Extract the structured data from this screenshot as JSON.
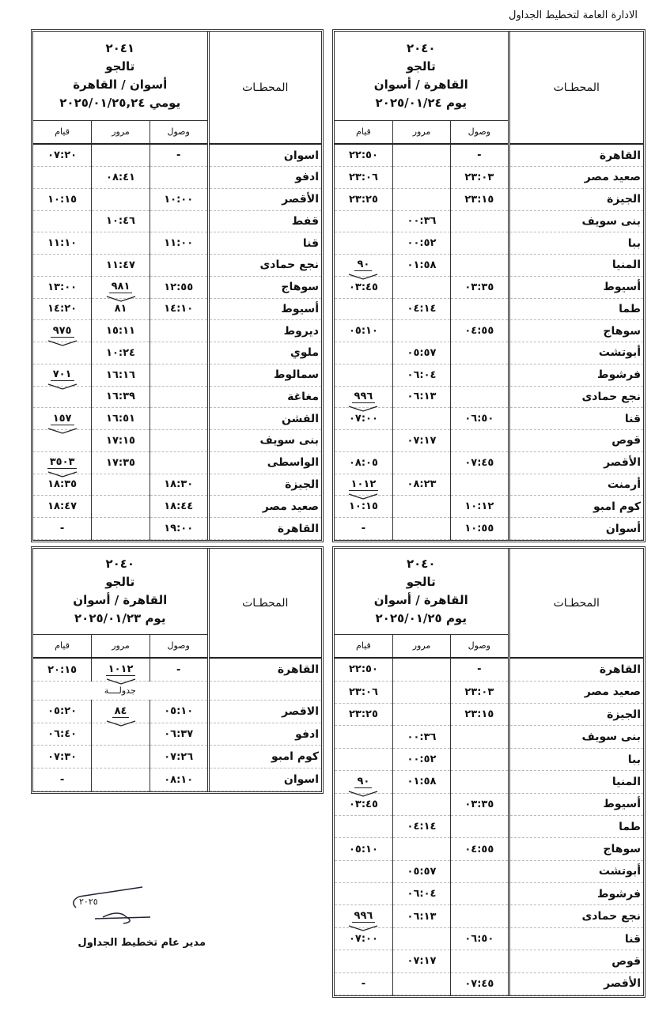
{
  "org_title": "الادارة العامة لتخطيط الجداول",
  "headers": {
    "stations": "المحطـات",
    "arrival": "وصول",
    "pass": "مرور",
    "depart": "قيام"
  },
  "timetables": [
    {
      "id": "top-right",
      "train": "٢٠٤٠",
      "type": "تالجو",
      "route": "القاهرة / أسوان",
      "date": "يوم ٢٠٢٥/٠١/٢٤",
      "rows": [
        {
          "station": "القاهرة",
          "arr": "-",
          "pass": "",
          "dep": "٢٢:٥٠"
        },
        {
          "station": "صعيد مصر",
          "arr": "٢٣:٠٣",
          "pass": "",
          "dep": "٢٣:٠٦"
        },
        {
          "station": "الجيزة",
          "arr": "٢٣:١٥",
          "pass": "",
          "dep": "٢٣:٢٥"
        },
        {
          "station": "بنى سويف",
          "arr": "",
          "pass": "٠٠:٣٦",
          "dep": ""
        },
        {
          "station": "ببا",
          "arr": "",
          "pass": "٠٠:٥٢",
          "dep": ""
        },
        {
          "station": "المنيا",
          "arr": "",
          "pass": "٠١:٥٨",
          "dep": "٩٠",
          "dep_note": true
        },
        {
          "station": "أسيوط",
          "arr": "٠٣:٣٥",
          "pass": "",
          "dep": "٠٣:٤٥"
        },
        {
          "station": "طما",
          "arr": "",
          "pass": "٠٤:١٤",
          "dep": ""
        },
        {
          "station": "سوهاج",
          "arr": "٠٤:٥٥",
          "pass": "",
          "dep": "٠٥:١٠"
        },
        {
          "station": "أبوتشت",
          "arr": "",
          "pass": "٠٥:٥٧",
          "dep": ""
        },
        {
          "station": "فرشوط",
          "arr": "",
          "pass": "٠٦:٠٤",
          "dep": ""
        },
        {
          "station": "نجع حمادى",
          "arr": "",
          "pass": "٠٦:١٣",
          "dep": "٩٩٦",
          "dep_note": true
        },
        {
          "station": "قنا",
          "arr": "٠٦:٥٠",
          "pass": "",
          "dep": "٠٧:٠٠"
        },
        {
          "station": "قوص",
          "arr": "",
          "pass": "٠٧:١٧",
          "dep": ""
        },
        {
          "station": "الأقصر",
          "arr": "٠٧:٤٥",
          "pass": "",
          "dep": "٠٨:٠٥"
        },
        {
          "station": "أرمنت",
          "arr": "",
          "pass": "٠٨:٢٣",
          "dep": "١٠١٢",
          "dep_note": true
        },
        {
          "station": "كوم امبو",
          "arr": "١٠:١٢",
          "pass": "",
          "dep": "١٠:١٥"
        },
        {
          "station": "أسوان",
          "arr": "١٠:٥٥",
          "pass": "",
          "dep": "-"
        }
      ]
    },
    {
      "id": "top-left",
      "train": "٢٠٤١",
      "type": "تالجو",
      "route": "أسوان / القاهرة",
      "date": "يومي ٢٠٢٥/٠١/٢٥,٢٤",
      "rows": [
        {
          "station": "اسوان",
          "arr": "-",
          "pass": "",
          "dep": "٠٧:٢٠"
        },
        {
          "station": "ادفو",
          "arr": "",
          "pass": "٠٨:٤١",
          "dep": ""
        },
        {
          "station": "الأقصر",
          "arr": "١٠:٠٠",
          "pass": "",
          "dep": "١٠:١٥"
        },
        {
          "station": "قفط",
          "arr": "",
          "pass": "١٠:٤٦",
          "dep": ""
        },
        {
          "station": "قنا",
          "arr": "١١:٠٠",
          "pass": "",
          "dep": "١١:١٠"
        },
        {
          "station": "نجع حمادى",
          "arr": "",
          "pass": "١١:٤٧",
          "dep": ""
        },
        {
          "station": "سوهاج",
          "arr": "١٢:٥٥",
          "pass": "٩٨١",
          "pass_note": true,
          "dep": "١٣:٠٠"
        },
        {
          "station": "أسيوط",
          "arr": "١٤:١٠",
          "pass": "٨١",
          "dep": "١٤:٢٠"
        },
        {
          "station": "ديروط",
          "arr": "",
          "pass": "١٥:١١",
          "dep": "٩٧٥",
          "dep_note": true
        },
        {
          "station": "ملوي",
          "arr": "",
          "pass": "١٠:٢٤",
          "dep": ""
        },
        {
          "station": "سمالوط",
          "arr": "",
          "pass": "١٦:١٦",
          "dep": "٧٠١",
          "dep_note": true
        },
        {
          "station": "مغاغة",
          "arr": "",
          "pass": "١٦:٣٩",
          "dep": ""
        },
        {
          "station": "الفشن",
          "arr": "",
          "pass": "١٦:٥١",
          "dep": "١٥٧",
          "dep_note": true
        },
        {
          "station": "بنى سويف",
          "arr": "",
          "pass": "١٧:١٥",
          "dep": ""
        },
        {
          "station": "الواسطى",
          "arr": "",
          "pass": "١٧:٣٥",
          "dep": "٣٥٠٣",
          "dep_note": true
        },
        {
          "station": "الجيزة",
          "arr": "١٨:٣٠",
          "pass": "",
          "dep": "١٨:٣٥"
        },
        {
          "station": "صعيد مصر",
          "arr": "١٨:٤٤",
          "pass": "",
          "dep": "١٨:٤٧"
        },
        {
          "station": "القاهرة",
          "arr": "١٩:٠٠",
          "pass": "",
          "dep": "-"
        }
      ]
    },
    {
      "id": "bottom-right",
      "train": "٢٠٤٠",
      "type": "تالجو",
      "route": "القاهرة / أسوان",
      "date": "يوم ٢٠٢٥/٠١/٢٥",
      "rows": [
        {
          "station": "القاهرة",
          "arr": "-",
          "pass": "",
          "dep": "٢٢:٥٠"
        },
        {
          "station": "صعيد مصر",
          "arr": "٢٣:٠٣",
          "pass": "",
          "dep": "٢٣:٠٦"
        },
        {
          "station": "الجيزة",
          "arr": "٢٣:١٥",
          "pass": "",
          "dep": "٢٣:٢٥"
        },
        {
          "station": "بنى سويف",
          "arr": "",
          "pass": "٠٠:٣٦",
          "dep": ""
        },
        {
          "station": "ببا",
          "arr": "",
          "pass": "٠٠:٥٢",
          "dep": ""
        },
        {
          "station": "المنيا",
          "arr": "",
          "pass": "٠١:٥٨",
          "dep": "٩٠",
          "dep_note": true
        },
        {
          "station": "أسيوط",
          "arr": "٠٣:٣٥",
          "pass": "",
          "dep": "٠٣:٤٥"
        },
        {
          "station": "طما",
          "arr": "",
          "pass": "٠٤:١٤",
          "dep": ""
        },
        {
          "station": "سوهاج",
          "arr": "٠٤:٥٥",
          "pass": "",
          "dep": "٠٥:١٠"
        },
        {
          "station": "أبوتشت",
          "arr": "",
          "pass": "٠٥:٥٧",
          "dep": ""
        },
        {
          "station": "فرشوط",
          "arr": "",
          "pass": "٠٦:٠٤",
          "dep": ""
        },
        {
          "station": "نجع حمادى",
          "arr": "",
          "pass": "٠٦:١٣",
          "dep": "٩٩٦",
          "dep_note": true
        },
        {
          "station": "قنا",
          "arr": "٠٦:٥٠",
          "pass": "",
          "dep": "٠٧:٠٠"
        },
        {
          "station": "قوص",
          "arr": "",
          "pass": "٠٧:١٧",
          "dep": ""
        },
        {
          "station": "الأقصر",
          "arr": "٠٧:٤٥",
          "pass": "",
          "dep": "-"
        }
      ]
    },
    {
      "id": "bottom-left",
      "train": "٢٠٤٠",
      "type": "تالجو",
      "route": "القاهرة / أسوان",
      "date": "يوم ٢٠٢٥/٠١/٢٣",
      "rows": [
        {
          "station": "القاهرة",
          "arr": "-",
          "pass": "١٠١٢",
          "pass_note": true,
          "dep": "٢٠:١٥"
        },
        {
          "schedule": "جدولــــة"
        },
        {
          "station": "الاقصر",
          "arr": "٠٥:١٠",
          "pass": "٨٤",
          "pass_note": true,
          "dep": "٠٥:٢٠"
        },
        {
          "station": "ادفو",
          "arr": "٠٦:٣٧",
          "pass": "",
          "dep": "٠٦:٤٠"
        },
        {
          "station": "كوم امبو",
          "arr": "٠٧:٢٦",
          "pass": "",
          "dep": "٠٧:٣٠"
        },
        {
          "station": "اسوان",
          "arr": "٠٨:١٠",
          "pass": "",
          "dep": "-"
        }
      ]
    }
  ],
  "signature": {
    "date": "٢٠٢٥",
    "role": "مدير عام تخطيط الجداول"
  }
}
